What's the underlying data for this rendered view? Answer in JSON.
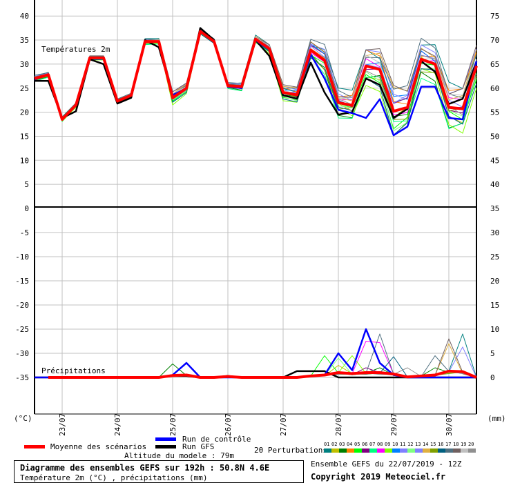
{
  "chart_data": {
    "type": "line",
    "title": "Diagramme des ensembles GEFS sur 192h : 50.8N 4.6E",
    "subtitle": "Température 2m (°C) , précipitations (mm)",
    "panel_labels": {
      "temperature": "Températures 2m",
      "precipitation": "Précipitations"
    },
    "left_axis_label": "(°C)",
    "right_axis_label": "(mm)",
    "left_ticks_upper": [
      40,
      35,
      30,
      25,
      20,
      15,
      10,
      5,
      0
    ],
    "left_ticks_lower": [
      -5,
      -10,
      -15,
      -20,
      -25,
      -30,
      -35
    ],
    "right_ticks_upper": [
      75,
      70,
      65,
      60,
      55,
      50,
      45,
      40
    ],
    "right_ticks_lower": [
      35,
      30,
      25,
      20,
      15,
      10,
      5,
      0
    ],
    "x_step_hours": 6,
    "date_ticks": [
      {
        "index": 2,
        "label": "23/07"
      },
      {
        "index": 6,
        "label": "24/07"
      },
      {
        "index": 10,
        "label": "25/07"
      },
      {
        "index": 14,
        "label": "26/07"
      },
      {
        "index": 18,
        "label": "27/07"
      },
      {
        "index": 22,
        "label": "28/07"
      },
      {
        "index": 26,
        "label": "29/07"
      },
      {
        "index": 30,
        "label": "30/07"
      }
    ],
    "temperature": {
      "mean": [
        27,
        27.8,
        18.5,
        21.5,
        31.3,
        31.3,
        22.3,
        23.5,
        34.7,
        34.7,
        23,
        25,
        36.8,
        34.7,
        25.5,
        25.3,
        35.2,
        33.2,
        24.1,
        23.6,
        32.9,
        30.8,
        22,
        21.4,
        29.6,
        28.9,
        20.2,
        21,
        31,
        30,
        21,
        20.7,
        29.6
      ],
      "control": [
        26.8,
        27.8,
        18.5,
        21.5,
        31.3,
        31.3,
        22.3,
        23.5,
        34.7,
        34.7,
        23.5,
        25,
        36.8,
        34.7,
        25.3,
        25,
        35,
        33,
        24,
        23.5,
        32,
        27,
        20.5,
        19.8,
        18.8,
        22.7,
        15.2,
        17,
        25.3,
        25.3,
        18.8,
        18.5,
        30.6
      ],
      "gfs": [
        26.5,
        26.5,
        18.8,
        20.2,
        31,
        30,
        21.8,
        23,
        35,
        33.5,
        23.5,
        25,
        37.5,
        35,
        25.3,
        25.3,
        35,
        31.7,
        23.5,
        22.8,
        30.3,
        24.1,
        19.5,
        20,
        27,
        25.7,
        18.8,
        20.7,
        30.6,
        28.4,
        21.7,
        22.8,
        30.5
      ],
      "spread": [
        0.6,
        0.5,
        0.5,
        0.5,
        0.4,
        0.4,
        0.4,
        0.4,
        0.6,
        0.6,
        1.5,
        1,
        0.5,
        0.5,
        0.6,
        0.8,
        0.8,
        1,
        1.5,
        1.5,
        2,
        3,
        3,
        3,
        4,
        4,
        5,
        4,
        4,
        4,
        5,
        5,
        4
      ],
      "member_offsets": [
        0.9,
        -0.3,
        -0.7,
        0.6,
        -0.5,
        0.2,
        -0.9,
        0.1,
        -1,
        0.4,
        0.7,
        -0.6,
        0.5,
        0.8,
        -0.4,
        -0.8,
        1,
        0.95,
        0.3,
        -0.1
      ]
    },
    "precipitation": {
      "mean": [
        0,
        0,
        0,
        0,
        0,
        0,
        0,
        0,
        0,
        0,
        0.4,
        0.5,
        0,
        0,
        0.2,
        0,
        0,
        0,
        0,
        0,
        0.3,
        0.5,
        1,
        0.8,
        1,
        1,
        0.7,
        0.1,
        0.3,
        0.5,
        1.3,
        1.2,
        0
      ],
      "control": [
        0,
        0,
        0,
        0,
        0,
        0,
        0,
        0,
        0,
        0,
        0.5,
        3,
        0,
        0,
        0,
        0,
        0,
        0,
        0,
        0,
        0.3,
        0.5,
        5,
        1.5,
        10,
        3,
        0.5,
        0,
        0,
        0,
        0,
        0,
        0
      ],
      "gfs": [
        0,
        0,
        0,
        0,
        0,
        0,
        0,
        0,
        0,
        0,
        0.3,
        0.3,
        0,
        0,
        0.3,
        0,
        0,
        0,
        0,
        1.3,
        1.3,
        1.3,
        0,
        0,
        0,
        0,
        0,
        0,
        0,
        0,
        0,
        0,
        0
      ],
      "member_peaks": [
        [
          3,
          10,
          2.8
        ],
        [
          5,
          21,
          4.5
        ],
        [
          12,
          22,
          4
        ],
        [
          9,
          23,
          4.5
        ],
        [
          8,
          24,
          7.5
        ],
        [
          8,
          25,
          7.2
        ],
        [
          17,
          25,
          9
        ],
        [
          16,
          26,
          4.3
        ],
        [
          20,
          27,
          2
        ],
        [
          17,
          29,
          4.5
        ],
        [
          18,
          30,
          8
        ],
        [
          14,
          30,
          7
        ],
        [
          1,
          31,
          9
        ],
        [
          11,
          31,
          6.3
        ],
        [
          6,
          24,
          2
        ],
        [
          3,
          25,
          2
        ],
        [
          3,
          29,
          2
        ],
        [
          2,
          22,
          2.5
        ]
      ]
    },
    "member_colors": [
      "#008080",
      "#c0c000",
      "#008000",
      "#ff8000",
      "#00ff00",
      "#800080",
      "#00ff80",
      "#ff00ff",
      "#80ff00",
      "#0080ff",
      "#8080ff",
      "#80ff80",
      "#8080ff",
      "#e0b040",
      "#80a000",
      "#006080",
      "#507080",
      "#706060",
      "#c0c0c0",
      "#909090"
    ],
    "mean_color": "#ff0000",
    "control_color": "#0000ff",
    "gfs_color": "#000000"
  },
  "legend": {
    "mean": "Moyenne des scénarios",
    "control": "Run de contrôle",
    "gfs": "Run GFS",
    "altitude": "Altitude du modele : 79m",
    "perturbations": "20 Perturbations",
    "member_numbers": [
      "01",
      "02",
      "03",
      "04",
      "05",
      "06",
      "07",
      "08",
      "09",
      "10",
      "11",
      "12",
      "13",
      "14",
      "15",
      "16",
      "17",
      "18",
      "19",
      "20"
    ]
  },
  "footer": {
    "run": "Ensemble GEFS du 22/07/2019 - 12Z",
    "copyright": "Copyright 2019 Meteociel.fr"
  }
}
